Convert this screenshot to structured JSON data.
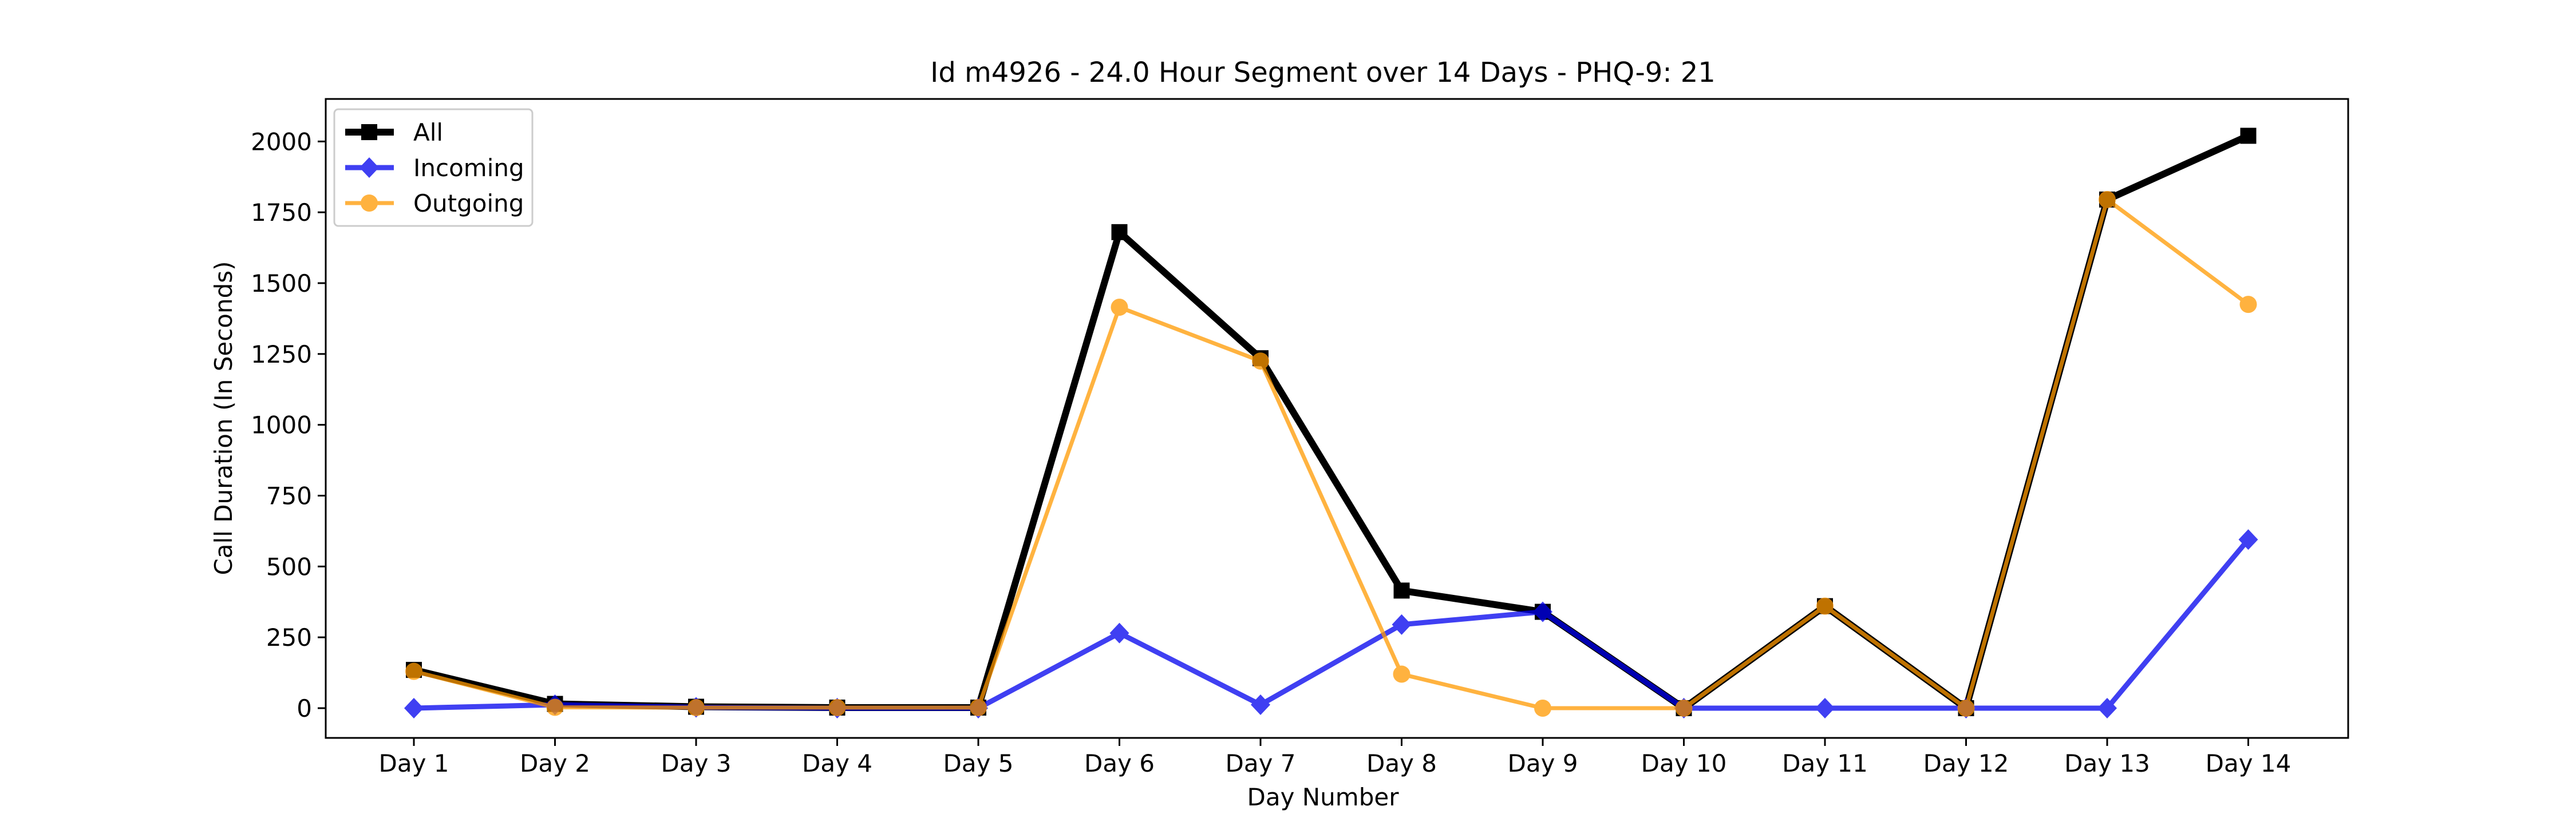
{
  "chart_data": {
    "type": "line",
    "title": "Id m4926 - 24.0 Hour Segment over 14 Days - PHQ-9: 21",
    "xlabel": "Day Number",
    "ylabel": "Call Duration (In Seconds)",
    "categories": [
      "Day 1",
      "Day 2",
      "Day 3",
      "Day 4",
      "Day 5",
      "Day 6",
      "Day 7",
      "Day 8",
      "Day 9",
      "Day 10",
      "Day 11",
      "Day 12",
      "Day 13",
      "Day 14"
    ],
    "ylim": [
      -105,
      2150
    ],
    "yticks": [
      0,
      250,
      500,
      750,
      1000,
      1250,
      1500,
      1750,
      2000
    ],
    "ytick_labels": [
      "0",
      "250",
      "500",
      "750",
      "1000",
      "1250",
      "1500",
      "1750",
      "2000"
    ],
    "grid": false,
    "legend_position": "top-left",
    "series": [
      {
        "name": "All",
        "color": "#000000",
        "marker": "square",
        "values": [
          135,
          15,
          5,
          2,
          2,
          1680,
          1235,
          415,
          340,
          0,
          360,
          0,
          1795,
          2020
        ]
      },
      {
        "name": "Incoming",
        "color": "#0000ee",
        "marker": "diamond",
        "values": [
          0,
          12,
          3,
          0,
          0,
          265,
          12,
          295,
          340,
          0,
          0,
          0,
          0,
          595
        ]
      },
      {
        "name": "Outgoing",
        "color": "#ff9900",
        "marker": "circle",
        "values": [
          130,
          3,
          2,
          2,
          2,
          1415,
          1225,
          120,
          0,
          0,
          360,
          0,
          1795,
          1425
        ]
      }
    ]
  }
}
